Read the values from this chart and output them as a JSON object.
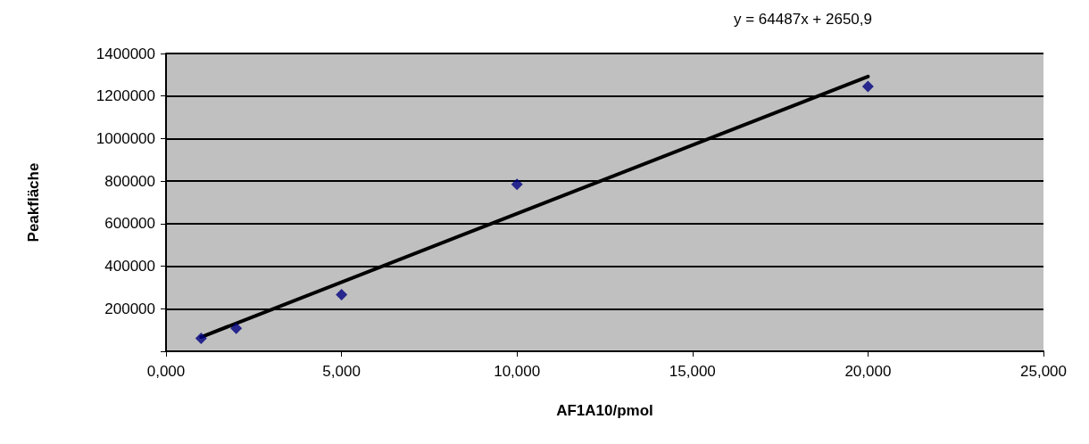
{
  "chart_data": {
    "type": "scatter",
    "xlabel": "AF1A10/pmol",
    "ylabel": "Peakfläche",
    "annotations": [
      "y = 64487x + 2650,9"
    ],
    "series": [
      {
        "color": "#000080",
        "x": [
          1,
          2,
          5,
          10,
          20
        ],
        "values": [
          61000,
          108000,
          266000,
          785000,
          1245000
        ]
      },
      {
        "type": "line",
        "color": "#000000",
        "x": [
          1,
          20
        ],
        "values": [
          67000,
          1292000
        ],
        "marker": "none"
      }
    ],
    "xlim": [
      0,
      25
    ],
    "xticks": [
      {
        "value": 0,
        "label": "0,000"
      },
      {
        "value": 5,
        "label": "5,000"
      },
      {
        "value": 10,
        "label": "10,000"
      },
      {
        "value": 15,
        "label": "15,000"
      },
      {
        "value": 20,
        "label": "20,000"
      },
      {
        "value": 25,
        "label": "25,000"
      }
    ],
    "ylim": [
      0,
      1400000
    ],
    "yticks": [
      {
        "value": 0,
        "label": null
      },
      200000,
      400000,
      600000,
      800000,
      1000000,
      1200000,
      1400000
    ],
    "grid": "y",
    "marker": "diamond"
  }
}
